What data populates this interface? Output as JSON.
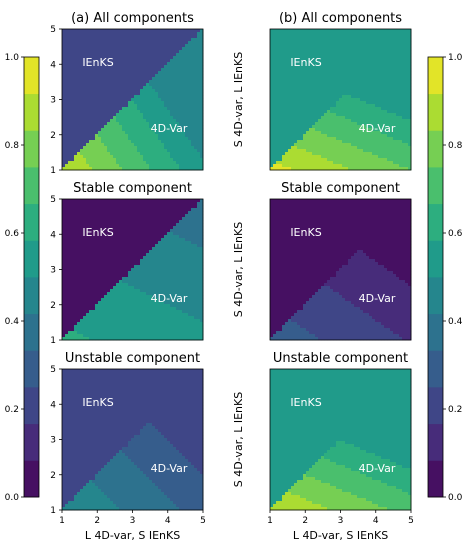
{
  "chart_data": {
    "type": "heatmap",
    "colormap": "viridis",
    "colorbar": {
      "range": [
        0.0,
        1.0
      ],
      "ticks": [
        "0.0",
        "0.2",
        "0.4",
        "0.6",
        "0.8",
        "1.0"
      ]
    },
    "xlabel": "L 4D-var, S IEnKS",
    "ylabel": "S 4D-var, L IEnKS",
    "axis_ticks": [
      "1",
      "2",
      "3",
      "4",
      "5"
    ],
    "xlim": [
      1,
      5
    ],
    "ylim": [
      1,
      5
    ],
    "region_labels": {
      "upper_left": "IEnKS",
      "lower_right": "4D-Var"
    },
    "panels": [
      {
        "id": "a1",
        "title": "(a) All components",
        "upper": {
          "base": 0.18,
          "gx": 0.0,
          "gy": 0.0
        },
        "lower": {
          "base": 0.92,
          "gx": -0.1,
          "gy": -0.07,
          "min": 0.45
        }
      },
      {
        "id": "a2",
        "title": "Stable component",
        "upper": {
          "base": 0.0,
          "gx": 0.0,
          "gy": 0.0
        },
        "lower": {
          "base": 0.6,
          "gx": -0.02,
          "gy": -0.04,
          "min": 0.4
        }
      },
      {
        "id": "a3",
        "title": "Unstable component",
        "upper": {
          "base": 0.18,
          "gx": 0.015,
          "gy": 0.0
        },
        "lower": {
          "base": 0.5,
          "gx": -0.05,
          "gy": -0.05,
          "min": 0.2
        }
      },
      {
        "id": "b1",
        "title": "(b) All components",
        "upper": {
          "base": 0.55,
          "gx": 0.0,
          "gy": 0.0
        },
        "lower": {
          "base": 0.95,
          "gx": -0.05,
          "gy": -0.12,
          "min": 0.55
        }
      },
      {
        "id": "b2",
        "title": "Stable component",
        "upper": {
          "base": 0.02,
          "gx": 0.0,
          "gy": 0.0
        },
        "lower": {
          "base": 0.3,
          "gx": -0.035,
          "gy": -0.05,
          "min": 0.08
        }
      },
      {
        "id": "b3",
        "title": "Unstable component",
        "upper": {
          "base": 0.5,
          "gx": 0.0,
          "gy": 0.0
        },
        "lower": {
          "base": 0.92,
          "gx": -0.05,
          "gy": -0.12,
          "min": 0.55
        }
      }
    ]
  }
}
